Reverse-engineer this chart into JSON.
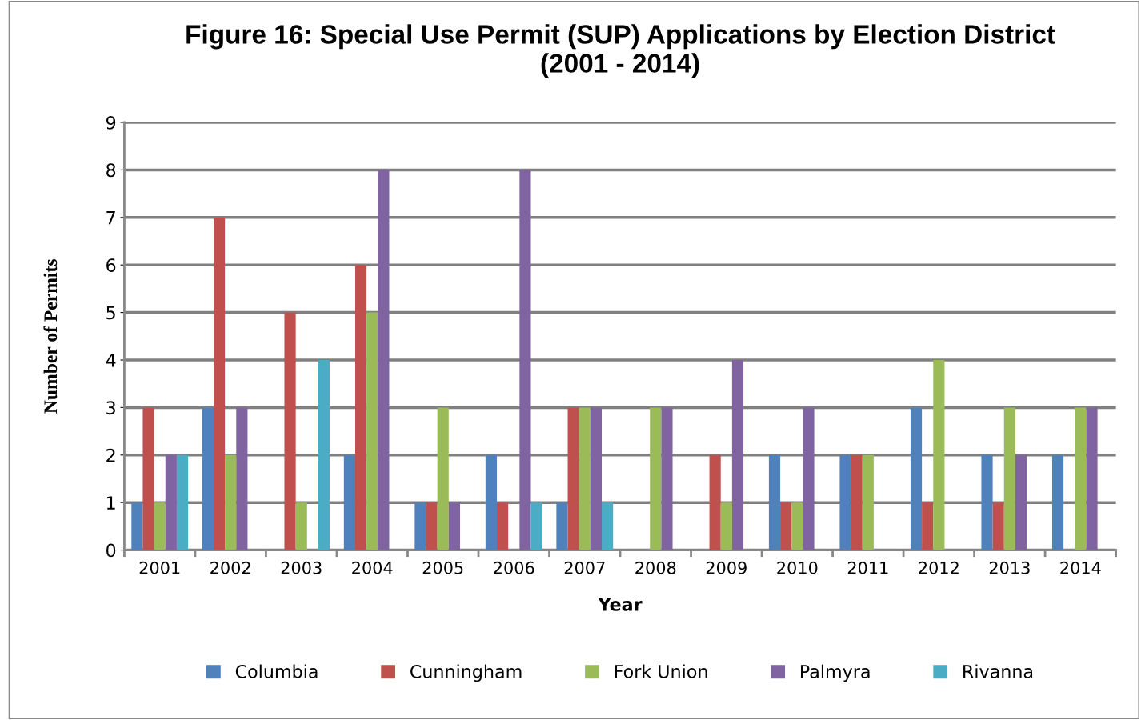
{
  "chart_data": {
    "type": "bar",
    "title": "Figure 16: Special Use Permit (SUP) Applications by Election District\n(2001 - 2014)",
    "xlabel": "Year",
    "ylabel": "Number of Permits",
    "categories": [
      "2001",
      "2002",
      "2003",
      "2004",
      "2005",
      "2006",
      "2007",
      "2008",
      "2009",
      "2010",
      "2011",
      "2012",
      "2013",
      "2014"
    ],
    "series": [
      {
        "name": "Columbia",
        "color": "#4f81bd",
        "values": [
          1,
          3,
          0,
          2,
          1,
          2,
          1,
          0,
          0,
          2,
          2,
          3,
          2,
          2
        ]
      },
      {
        "name": "Cunningham",
        "color": "#c0504d",
        "values": [
          3,
          7,
          5,
          6,
          1,
          1,
          3,
          0,
          2,
          1,
          2,
          1,
          1,
          0
        ]
      },
      {
        "name": "Fork Union",
        "color": "#9bbb59",
        "values": [
          1,
          2,
          1,
          5,
          3,
          0,
          3,
          3,
          1,
          1,
          2,
          4,
          3,
          3
        ]
      },
      {
        "name": "Palmyra",
        "color": "#8064a2",
        "values": [
          2,
          3,
          0,
          8,
          1,
          8,
          3,
          3,
          4,
          3,
          0,
          0,
          2,
          3
        ]
      },
      {
        "name": "Rivanna",
        "color": "#4bacc6",
        "values": [
          2,
          0,
          4,
          0,
          0,
          1,
          1,
          0,
          0,
          0,
          0,
          0,
          0,
          0
        ]
      }
    ],
    "ylim": [
      0,
      9
    ],
    "yticks": [
      0,
      1,
      2,
      3,
      4,
      5,
      6,
      7,
      8,
      9
    ],
    "grid": "y",
    "legend": "bottom"
  }
}
